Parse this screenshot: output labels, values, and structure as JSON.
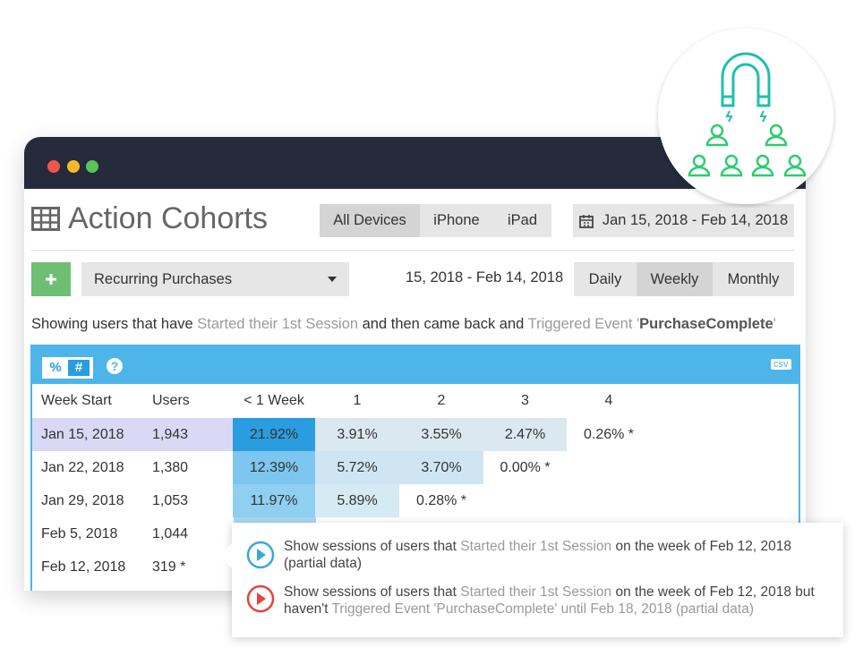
{
  "header": {
    "title": "Action Cohorts",
    "devices": [
      "All Devices",
      "iPhone",
      "iPad"
    ],
    "date_range": "Jan 15, 2018 - Feb 14, 2018"
  },
  "controls": {
    "segment": "Recurring Purchases",
    "date_range": "15, 2018 - Feb 14, 2018",
    "periods": [
      "Daily",
      "Weekly",
      "Monthly"
    ]
  },
  "description": [
    "Showing users that have ",
    "Started their 1st Session",
    " and then came back and ",
    "Triggered Event '",
    "PurchaseComplete",
    "'"
  ],
  "table": {
    "toggles": [
      "%",
      "#"
    ],
    "help": "?",
    "export": "csv",
    "columns": [
      "Week Start",
      "Users",
      "< 1 Week",
      "1",
      "2",
      "3",
      "4"
    ],
    "rows": [
      [
        "Jan 15, 2018",
        "1,943",
        "21.92%",
        "3.91%",
        "3.55%",
        "2.47%",
        "0.26% *"
      ],
      [
        "Jan 22, 2018",
        "1,380",
        "12.39%",
        "5.72%",
        "3.70%",
        "0.00% *"
      ],
      [
        "Jan 29, 2018",
        "1,053",
        "11.97%",
        "5.89%",
        "0.28% *"
      ],
      [
        "Feb 5, 2018",
        "1,044"
      ],
      [
        "Feb 12, 2018",
        "319 *"
      ]
    ]
  },
  "tooltip": {
    "items": [
      [
        "Show sessions of users that ",
        "Started their 1st Session",
        " on the week of Feb 12, 2018 (partial data)"
      ],
      [
        "Show sessions of users that ",
        "Started their 1st Session",
        " on the week of Feb 12, 2018 but haven't ",
        "Triggered Event 'PurchaseComplete' until Feb 18, 2018 (partial data)"
      ]
    ]
  }
}
